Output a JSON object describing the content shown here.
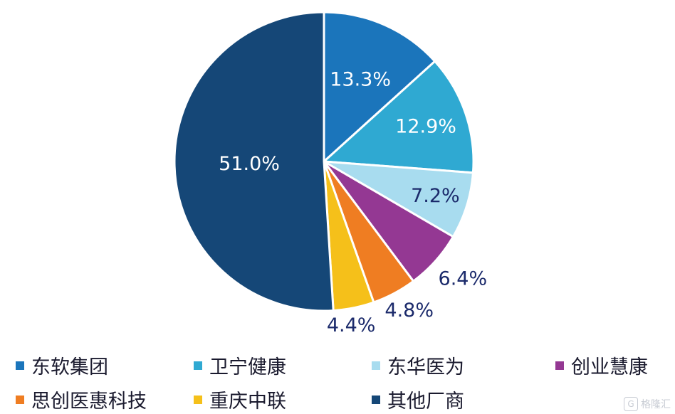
{
  "chart_data": {
    "type": "pie",
    "slices": [
      {
        "name": "东软集团",
        "value": 13.3,
        "label": "13.3%",
        "color": "#1b75bb"
      },
      {
        "name": "卫宁健康",
        "value": 12.9,
        "label": "12.9%",
        "color": "#2fa9d2"
      },
      {
        "name": "东华医为",
        "value": 7.2,
        "label": "7.2%",
        "color": "#a8dcef"
      },
      {
        "name": "创业慧康",
        "value": 6.4,
        "label": "6.4%",
        "color": "#943893"
      },
      {
        "name": "思创医惠科技",
        "value": 4.8,
        "label": "4.8%",
        "color": "#ef7d22"
      },
      {
        "name": "重庆中联",
        "value": 4.4,
        "label": "4.4%",
        "color": "#f5c01a"
      },
      {
        "name": "其他厂商",
        "value": 51.0,
        "label": "51.0%",
        "color": "#154777"
      }
    ],
    "legend_position": "bottom"
  },
  "watermark": {
    "logo_glyph": "G",
    "text": "格隆汇"
  }
}
